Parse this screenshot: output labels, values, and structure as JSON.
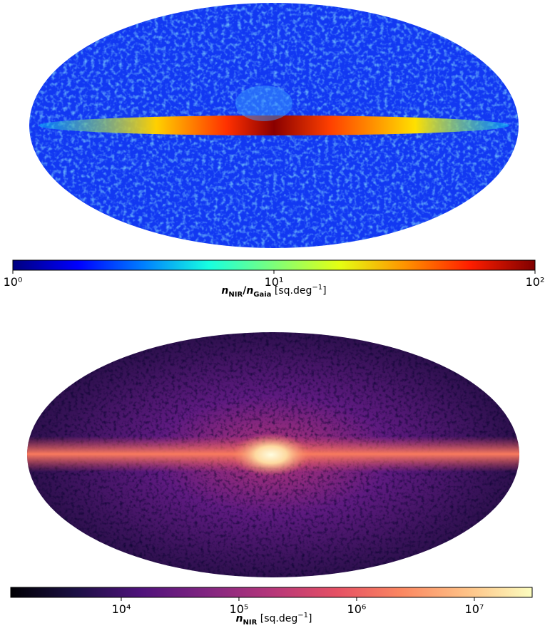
{
  "chart_data": [
    {
      "type": "colorbar",
      "scale": "log",
      "xlim": [
        1,
        100
      ],
      "xticks": [
        {
          "value": 1,
          "label": "10⁰"
        },
        {
          "value": 10,
          "label": "10¹"
        },
        {
          "value": 100,
          "label": "10²"
        }
      ],
      "colormap": [
        "#00007f",
        "#0000ff",
        "#007fff",
        "#17ffe0",
        "#7dff7a",
        "#e4ff13",
        "#ff9400",
        "#ff1e00",
        "#7f0000"
      ],
      "xlabel_parts": [
        "n",
        "NIR",
        "/",
        "n",
        "Gaia",
        " [sq.deg",
        "−1",
        "]"
      ]
    },
    {
      "type": "colorbar",
      "scale": "log",
      "xlim": [
        1150,
        31000000
      ],
      "xticks": [
        {
          "value": 10000,
          "label": "10⁴"
        },
        {
          "value": 100000,
          "label": "10⁵"
        },
        {
          "value": 1000000,
          "label": "10⁶"
        },
        {
          "value": 10000000,
          "label": "10⁷"
        }
      ],
      "colormap": [
        "#000004",
        "#1c1044",
        "#4f127b",
        "#812581",
        "#b5367a",
        "#e55064",
        "#fb8761",
        "#fec287",
        "#fcfdbf"
      ],
      "xlabel_parts": [
        "n",
        "NIR",
        " [sq.deg",
        "−1",
        "]"
      ]
    }
  ]
}
